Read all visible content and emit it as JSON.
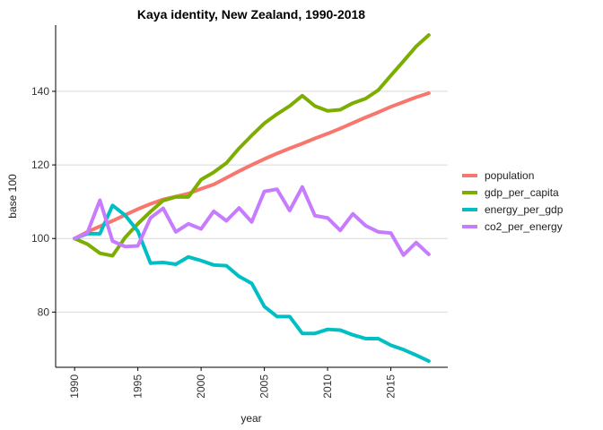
{
  "chart_data": {
    "type": "line",
    "title": "Kaya identity, New Zealand, 1990-2018",
    "xlabel": "year",
    "ylabel": "base 100",
    "xlim": [
      1988.5,
      2019.5
    ],
    "ylim": [
      65,
      158
    ],
    "x_ticks": [
      1990,
      1995,
      2000,
      2005,
      2010,
      2015
    ],
    "y_ticks": [
      80,
      100,
      120,
      140
    ],
    "grid": "horizontal",
    "legend_position": "right",
    "x": [
      1990,
      1991,
      1992,
      1993,
      1994,
      1995,
      1996,
      1997,
      1998,
      1999,
      2000,
      2001,
      2002,
      2003,
      2004,
      2005,
      2006,
      2007,
      2008,
      2009,
      2010,
      2011,
      2012,
      2013,
      2014,
      2015,
      2016,
      2017,
      2018
    ],
    "series": [
      {
        "name": "population",
        "color": "#F8766D",
        "values": [
          100,
          101.8,
          103.3,
          104.8,
          106.4,
          108.0,
          109.4,
          110.6,
          111.4,
          112.2,
          113.5,
          114.7,
          116.5,
          118.3,
          120.0,
          121.6,
          123.1,
          124.5,
          125.8,
          127.2,
          128.5,
          129.9,
          131.4,
          132.9,
          134.3,
          135.8,
          137.1,
          138.4,
          139.5
        ]
      },
      {
        "name": "gdp_per_capita",
        "color": "#7CAE00",
        "values": [
          100,
          98.5,
          96.0,
          95.3,
          100.3,
          104.0,
          107.3,
          110.3,
          111.3,
          111.3,
          116.0,
          118.0,
          120.5,
          124.5,
          128.0,
          131.3,
          133.8,
          136.0,
          138.8,
          136.0,
          134.7,
          135.0,
          136.8,
          138.0,
          140.3,
          144.3,
          148.2,
          152.2,
          155.3
        ]
      },
      {
        "name": "energy_per_gdp",
        "color": "#00BFC4",
        "values": [
          100,
          101.3,
          101.3,
          109.0,
          106.3,
          102.0,
          93.3,
          93.5,
          93.0,
          95.0,
          94.0,
          92.8,
          92.6,
          89.7,
          87.8,
          81.5,
          78.8,
          78.8,
          74.2,
          74.2,
          75.3,
          75.1,
          73.8,
          72.8,
          72.8,
          71.0,
          69.8,
          68.3,
          66.7
        ]
      },
      {
        "name": "co2_per_energy",
        "color": "#C77CFF",
        "values": [
          100,
          101.5,
          110.4,
          99.3,
          97.8,
          98.0,
          105.6,
          108.2,
          101.8,
          104.0,
          102.6,
          107.4,
          104.8,
          108.3,
          104.5,
          112.8,
          113.4,
          107.6,
          114.0,
          106.2,
          105.6,
          102.2,
          106.7,
          103.5,
          101.8,
          101.5,
          95.5,
          98.9,
          95.7
        ]
      }
    ]
  }
}
